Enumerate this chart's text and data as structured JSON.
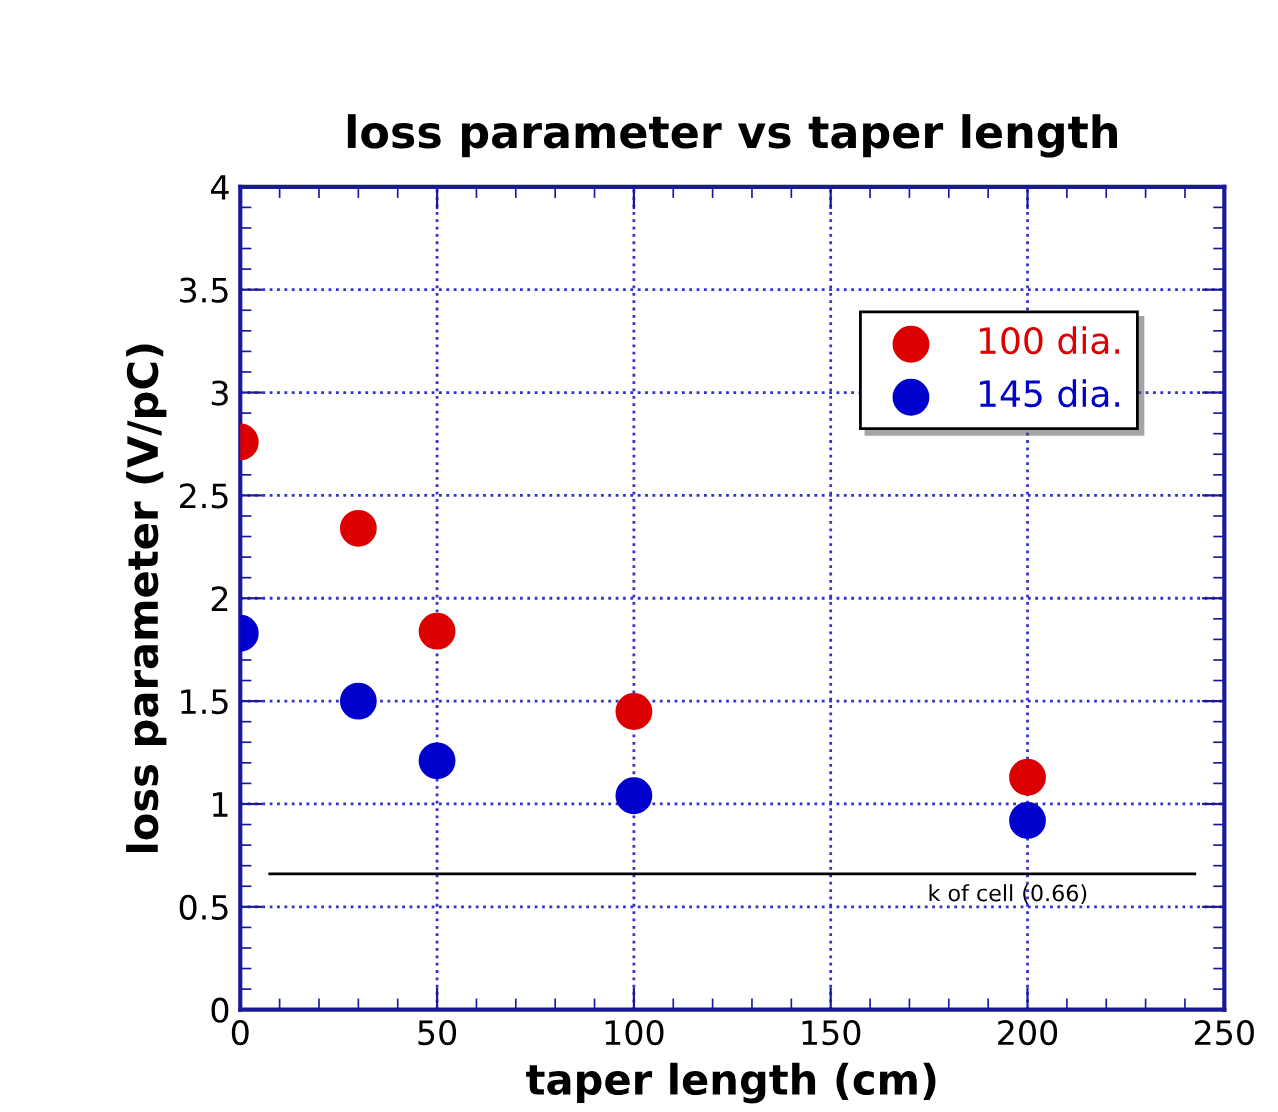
{
  "chart_data": {
    "type": "scatter",
    "title": "loss parameter vs taper length",
    "xlabel": "taper length (cm)",
    "ylabel": "loss parameter (V/pC)",
    "x": [
      0,
      30,
      50,
      100,
      200
    ],
    "series": [
      {
        "name": "100 dia.",
        "color": "#dd0000",
        "values": [
          2.76,
          2.34,
          1.84,
          1.45,
          1.13
        ]
      },
      {
        "name": "145 dia.",
        "color": "#0000cc",
        "values": [
          1.83,
          1.5,
          1.21,
          1.04,
          0.92
        ]
      }
    ],
    "xlim": [
      0,
      250
    ],
    "xticks": [
      0,
      50,
      100,
      150,
      200,
      250
    ],
    "ylim": [
      0,
      4
    ],
    "yticks": [
      0,
      0.5,
      1,
      1.5,
      2,
      2.5,
      3,
      3.5,
      4
    ],
    "ref_lines": [
      {
        "axis": "y",
        "value": 0.66,
        "label": "k of cell (0.66)",
        "color": "#000000"
      }
    ],
    "grid": true,
    "legend": "top right",
    "marker": "circle"
  }
}
